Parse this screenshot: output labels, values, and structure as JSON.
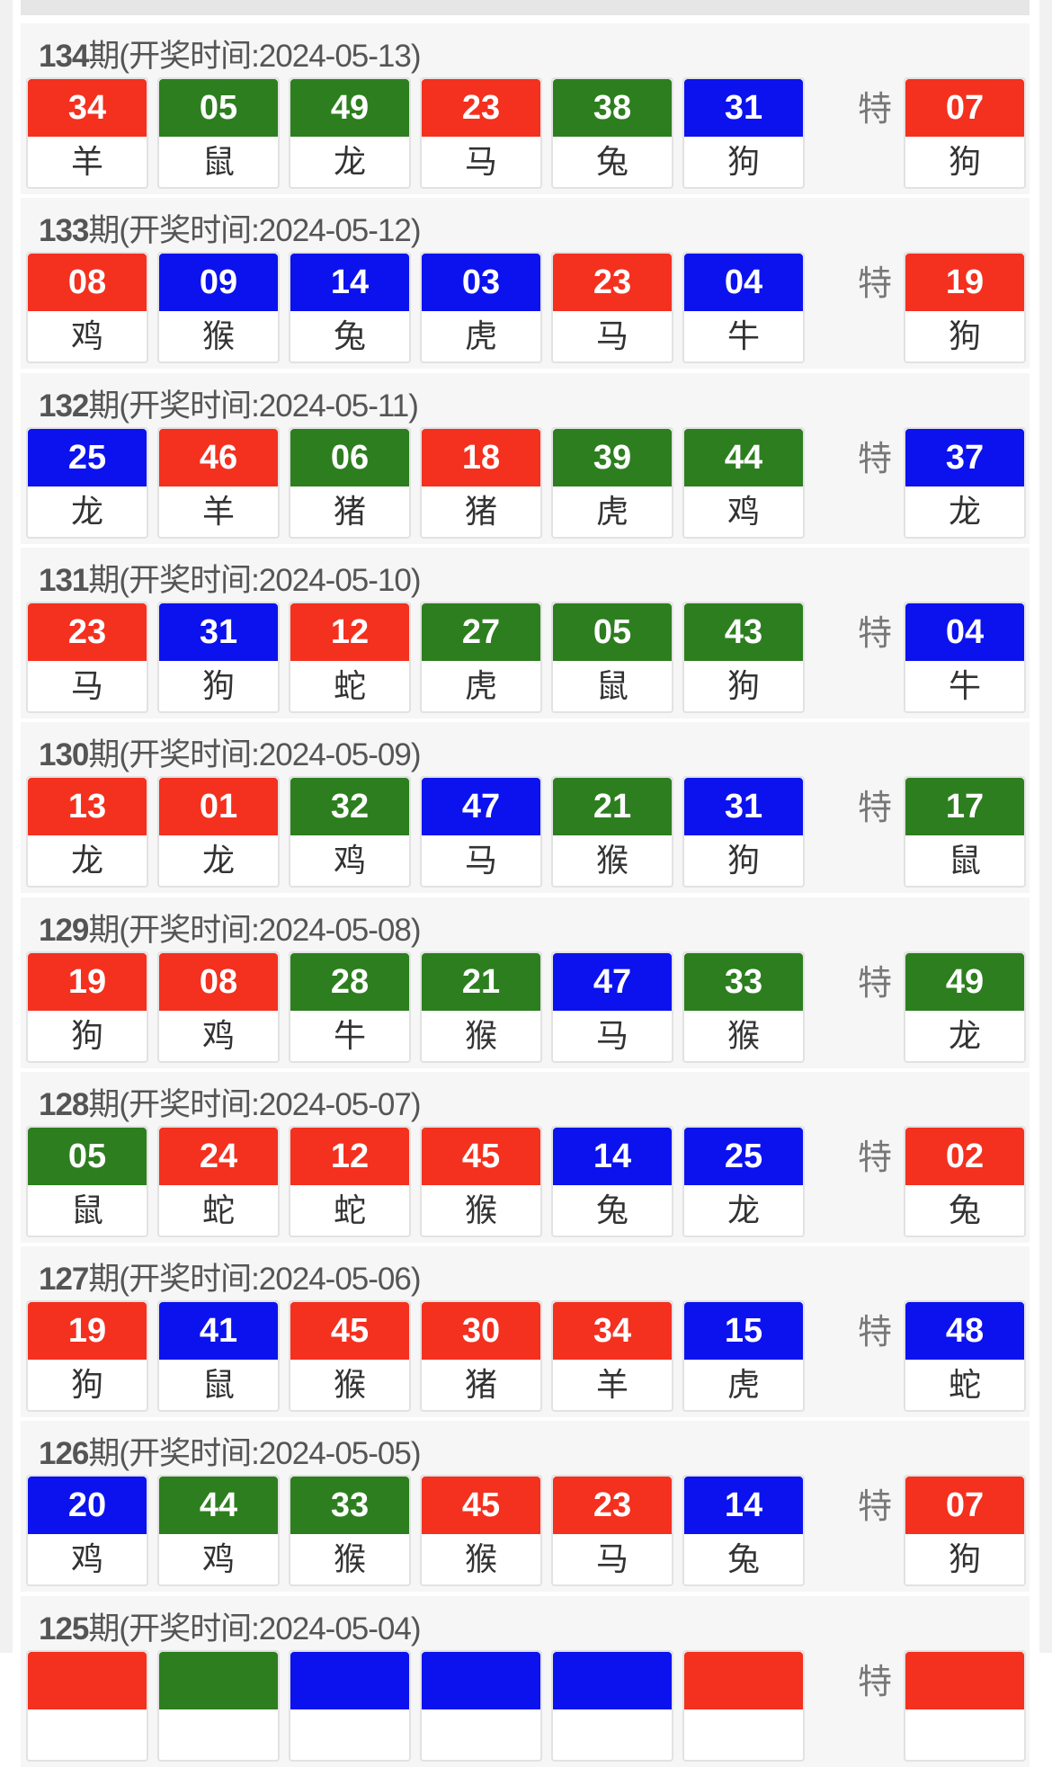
{
  "colors": {
    "red": "#f4301f",
    "green": "#2d7e1f",
    "blue": "#0b12ee"
  },
  "special_label": "特",
  "draws": [
    {
      "period": "134",
      "suffix": "期",
      "date_text": "(开奖时间:2024-05-13)",
      "balls": [
        [
          "34",
          "羊",
          "red"
        ],
        [
          "05",
          "鼠",
          "green"
        ],
        [
          "49",
          "龙",
          "green"
        ],
        [
          "23",
          "马",
          "red"
        ],
        [
          "38",
          "兔",
          "green"
        ],
        [
          "31",
          "狗",
          "blue"
        ]
      ],
      "special": [
        "07",
        "狗",
        "red"
      ]
    },
    {
      "period": "133",
      "suffix": "期",
      "date_text": "(开奖时间:2024-05-12)",
      "balls": [
        [
          "08",
          "鸡",
          "red"
        ],
        [
          "09",
          "猴",
          "blue"
        ],
        [
          "14",
          "兔",
          "blue"
        ],
        [
          "03",
          "虎",
          "blue"
        ],
        [
          "23",
          "马",
          "red"
        ],
        [
          "04",
          "牛",
          "blue"
        ]
      ],
      "special": [
        "19",
        "狗",
        "red"
      ]
    },
    {
      "period": "132",
      "suffix": "期",
      "date_text": "(开奖时间:2024-05-11)",
      "balls": [
        [
          "25",
          "龙",
          "blue"
        ],
        [
          "46",
          "羊",
          "red"
        ],
        [
          "06",
          "猪",
          "green"
        ],
        [
          "18",
          "猪",
          "red"
        ],
        [
          "39",
          "虎",
          "green"
        ],
        [
          "44",
          "鸡",
          "green"
        ]
      ],
      "special": [
        "37",
        "龙",
        "blue"
      ]
    },
    {
      "period": "131",
      "suffix": "期",
      "date_text": "(开奖时间:2024-05-10)",
      "balls": [
        [
          "23",
          "马",
          "red"
        ],
        [
          "31",
          "狗",
          "blue"
        ],
        [
          "12",
          "蛇",
          "red"
        ],
        [
          "27",
          "虎",
          "green"
        ],
        [
          "05",
          "鼠",
          "green"
        ],
        [
          "43",
          "狗",
          "green"
        ]
      ],
      "special": [
        "04",
        "牛",
        "blue"
      ]
    },
    {
      "period": "130",
      "suffix": "期",
      "date_text": "(开奖时间:2024-05-09)",
      "balls": [
        [
          "13",
          "龙",
          "red"
        ],
        [
          "01",
          "龙",
          "red"
        ],
        [
          "32",
          "鸡",
          "green"
        ],
        [
          "47",
          "马",
          "blue"
        ],
        [
          "21",
          "猴",
          "green"
        ],
        [
          "31",
          "狗",
          "blue"
        ]
      ],
      "special": [
        "17",
        "鼠",
        "green"
      ]
    },
    {
      "period": "129",
      "suffix": "期",
      "date_text": "(开奖时间:2024-05-08)",
      "balls": [
        [
          "19",
          "狗",
          "red"
        ],
        [
          "08",
          "鸡",
          "red"
        ],
        [
          "28",
          "牛",
          "green"
        ],
        [
          "21",
          "猴",
          "green"
        ],
        [
          "47",
          "马",
          "blue"
        ],
        [
          "33",
          "猴",
          "green"
        ]
      ],
      "special": [
        "49",
        "龙",
        "green"
      ]
    },
    {
      "period": "128",
      "suffix": "期",
      "date_text": "(开奖时间:2024-05-07)",
      "balls": [
        [
          "05",
          "鼠",
          "green"
        ],
        [
          "24",
          "蛇",
          "red"
        ],
        [
          "12",
          "蛇",
          "red"
        ],
        [
          "45",
          "猴",
          "red"
        ],
        [
          "14",
          "兔",
          "blue"
        ],
        [
          "25",
          "龙",
          "blue"
        ]
      ],
      "special": [
        "02",
        "兔",
        "red"
      ]
    },
    {
      "period": "127",
      "suffix": "期",
      "date_text": "(开奖时间:2024-05-06)",
      "balls": [
        [
          "19",
          "狗",
          "red"
        ],
        [
          "41",
          "鼠",
          "blue"
        ],
        [
          "45",
          "猴",
          "red"
        ],
        [
          "30",
          "猪",
          "red"
        ],
        [
          "34",
          "羊",
          "red"
        ],
        [
          "15",
          "虎",
          "blue"
        ]
      ],
      "special": [
        "48",
        "蛇",
        "blue"
      ]
    },
    {
      "period": "126",
      "suffix": "期",
      "date_text": "(开奖时间:2024-05-05)",
      "balls": [
        [
          "20",
          "鸡",
          "blue"
        ],
        [
          "44",
          "鸡",
          "green"
        ],
        [
          "33",
          "猴",
          "green"
        ],
        [
          "45",
          "猴",
          "red"
        ],
        [
          "23",
          "马",
          "red"
        ],
        [
          "14",
          "兔",
          "blue"
        ]
      ],
      "special": [
        "07",
        "狗",
        "red"
      ]
    },
    {
      "period": "125",
      "suffix": "期",
      "date_text": "(开奖时间:2024-05-04)",
      "balls": [
        [
          "",
          "",
          "red"
        ],
        [
          "",
          "",
          "green"
        ],
        [
          "",
          "",
          "blue"
        ],
        [
          "",
          "",
          "blue"
        ],
        [
          "",
          "",
          "blue"
        ],
        [
          "",
          "",
          "red"
        ]
      ],
      "special": [
        "",
        "",
        "red"
      ]
    }
  ]
}
